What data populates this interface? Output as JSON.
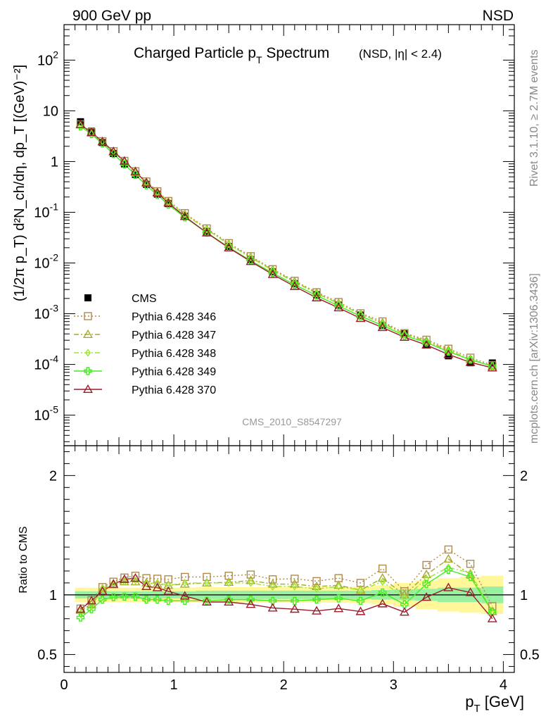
{
  "header": {
    "energy_label": "900 GeV pp",
    "process_label": "NSD"
  },
  "side_labels": {
    "rivet": "Rivet 3.1.10, ≥ 2.7M events",
    "mcplots": "mcplots.cern.ch [arXiv:1306.3436]"
  },
  "chart_data": [
    {
      "type": "line",
      "panel": "main",
      "title": "Charged Particle p_T Spectrum",
      "title_main": "Charged Particle p",
      "title_sub": "T",
      "title_rest": " Spectrum",
      "title_note": "(NSD, |η| < 2.4)",
      "watermark": "CMS_2010_S8547297",
      "ylabel": "(1/2π p_T) d²N_ch/dη, dp_T [(GeV)⁻²]",
      "yscale": "log",
      "xlim": [
        0,
        4.1
      ],
      "ylim": [
        2.5e-06,
        500
      ],
      "ytick_labels": [
        {
          "base": "10",
          "exp": "-5",
          "value": 1e-05
        },
        {
          "base": "10",
          "exp": "-4",
          "value": 0.0001
        },
        {
          "base": "10",
          "exp": "-3",
          "value": 0.001
        },
        {
          "base": "10",
          "exp": "-2",
          "value": 0.01
        },
        {
          "base": "10",
          "exp": "-1",
          "value": 0.1
        },
        {
          "base": "1",
          "exp": "",
          "value": 1
        },
        {
          "base": "10",
          "exp": "",
          "value": 10
        },
        {
          "base": "10",
          "exp": "2",
          "value": 100
        }
      ],
      "legend_position": "lower-left",
      "x": [
        0.15,
        0.25,
        0.35,
        0.45,
        0.55,
        0.65,
        0.75,
        0.85,
        0.95,
        1.1,
        1.3,
        1.5,
        1.7,
        1.9,
        2.1,
        2.3,
        2.5,
        2.7,
        2.9,
        3.1,
        3.3,
        3.5,
        3.7,
        3.9
      ],
      "series": [
        {
          "name": "CMS",
          "label": "CMS",
          "color": "#000000",
          "marker": "square-filled",
          "style": "points",
          "values": [
            6.1,
            3.95,
            2.37,
            1.44,
            0.9,
            0.555,
            0.355,
            0.228,
            0.148,
            0.0835,
            0.0418,
            0.0212,
            0.0116,
            0.00668,
            0.00392,
            0.00238,
            0.00148,
            0.000941,
            0.000578,
            0.000402,
            0.000247,
            0.000148,
            0.000108,
            0.000107
          ]
        },
        {
          "name": "Pythia 6.428 346",
          "label": "Pythia 6.428 346",
          "color": "#b08a4a",
          "marker": "square-open",
          "style": "dotted",
          "values": [
            5.4,
            3.78,
            2.52,
            1.6,
            1.03,
            0.644,
            0.405,
            0.259,
            0.167,
            0.096,
            0.048,
            0.0246,
            0.0136,
            0.00755,
            0.00445,
            0.00265,
            0.0017,
            0.00102,
            0.000705,
            0.000414,
            0.000307,
            0.000204,
            0.000136,
            9.68e-05
          ]
        },
        {
          "name": "Pythia 6.428 347",
          "label": "Pythia 6.428 347",
          "color": "#a8a82e",
          "marker": "triangle-open",
          "style": "dashdot",
          "values": [
            5.3,
            3.64,
            2.49,
            1.56,
            0.999,
            0.617,
            0.39,
            0.248,
            0.16,
            0.091,
            0.0461,
            0.0234,
            0.013,
            0.00728,
            0.00427,
            0.00254,
            0.0016,
            0.000979,
            0.000659,
            0.000402,
            0.000289,
            0.000192,
            0.000126,
            9.2e-05
          ]
        },
        {
          "name": "Pythia 6.428 348",
          "label": "Pythia 6.428 348",
          "color": "#9ee62e",
          "marker": "diamond-open",
          "style": "dashdot",
          "values": [
            5.15,
            3.56,
            2.49,
            1.58,
            1.0,
            0.622,
            0.389,
            0.251,
            0.16,
            0.092,
            0.046,
            0.0233,
            0.0128,
            0.00714,
            0.00419,
            0.0025,
            0.00158,
            0.00098,
            0.000642,
            0.000392,
            0.00028,
            0.000182,
            0.000128,
            9.15e-05
          ]
        },
        {
          "name": "Pythia 6.428 349",
          "label": "Pythia 6.428 349",
          "color": "#44ee22",
          "marker": "cross-open",
          "style": "solid",
          "values": [
            4.95,
            3.48,
            2.27,
            1.41,
            0.885,
            0.545,
            0.341,
            0.219,
            0.141,
            0.0794,
            0.0397,
            0.0204,
            0.0111,
            0.00636,
            0.00372,
            0.00229,
            0.00143,
            0.000894,
            0.00059,
            0.00037,
            0.00027,
            0.000179,
            0.000124,
            9.2e-05
          ]
        },
        {
          "name": "Pythia 6.428 370",
          "label": "Pythia 6.428 370",
          "color": "#9b1c2a",
          "marker": "triangle-open",
          "style": "solid",
          "values": [
            5.35,
            3.75,
            2.44,
            1.57,
            1.02,
            0.633,
            0.38,
            0.241,
            0.152,
            0.0827,
            0.0393,
            0.0199,
            0.0107,
            0.00595,
            0.00345,
            0.00206,
            0.00131,
            0.000809,
            0.000535,
            0.000343,
            0.000242,
            0.000157,
            0.00011,
            8.55e-05
          ]
        }
      ]
    },
    {
      "type": "line",
      "panel": "ratio",
      "ylabel": "Ratio to CMS",
      "xlabel": "p_T [GeV]",
      "xlabel_main": "p",
      "xlabel_sub": "T",
      "xlabel_rest": " [GeV]",
      "xlim": [
        0,
        4.1
      ],
      "ylim": [
        0.35,
        2.25
      ],
      "yticks": [
        0.5,
        1,
        2
      ],
      "ytick_labels": [
        "0.5",
        "1",
        "2"
      ],
      "xticks": [
        0,
        1,
        2,
        3,
        4
      ],
      "xtick_labels": [
        "0",
        "1",
        "2",
        "3",
        "4"
      ],
      "x": [
        0.15,
        0.25,
        0.35,
        0.45,
        0.55,
        0.65,
        0.75,
        0.85,
        0.95,
        1.1,
        1.3,
        1.5,
        1.7,
        1.9,
        2.1,
        2.3,
        2.5,
        2.7,
        2.9,
        3.1,
        3.3,
        3.5,
        3.7,
        3.9
      ],
      "x_edges": [
        0.1,
        0.2,
        0.3,
        0.4,
        0.5,
        0.6,
        0.7,
        0.8,
        0.9,
        1.0,
        1.2,
        1.4,
        1.6,
        1.8,
        2.0,
        2.2,
        2.4,
        2.6,
        2.8,
        3.0,
        3.2,
        3.4,
        3.6,
        3.8,
        4.0
      ],
      "band_inner": [
        0.03,
        0.03,
        0.03,
        0.03,
        0.03,
        0.03,
        0.03,
        0.03,
        0.03,
        0.03,
        0.035,
        0.035,
        0.035,
        0.035,
        0.035,
        0.035,
        0.035,
        0.035,
        0.04,
        0.045,
        0.05,
        0.06,
        0.06,
        0.07
      ],
      "band_outer": [
        0.06,
        0.06,
        0.06,
        0.06,
        0.06,
        0.06,
        0.06,
        0.06,
        0.06,
        0.06,
        0.065,
        0.065,
        0.065,
        0.065,
        0.065,
        0.065,
        0.065,
        0.07,
        0.08,
        0.1,
        0.12,
        0.14,
        0.15,
        0.16
      ],
      "series": [
        {
          "name": "Pythia 6.428 346",
          "color": "#b08a4a",
          "marker": "square-open",
          "style": "dotted",
          "values": [
            0.885,
            0.955,
            1.065,
            1.11,
            1.145,
            1.16,
            1.14,
            1.135,
            1.13,
            1.15,
            1.15,
            1.16,
            1.17,
            1.13,
            1.135,
            1.115,
            1.14,
            1.1,
            1.22,
            1.03,
            1.25,
            1.38,
            1.26,
            0.905
          ]
        },
        {
          "name": "Pythia 6.428 347",
          "color": "#a8a82e",
          "marker": "triangle-open",
          "style": "dashdot",
          "values": [
            0.87,
            0.92,
            1.05,
            1.085,
            1.11,
            1.11,
            1.1,
            1.09,
            1.08,
            1.09,
            1.1,
            1.105,
            1.12,
            1.09,
            1.09,
            1.07,
            1.08,
            1.04,
            1.14,
            1.0,
            1.17,
            1.3,
            1.17,
            0.86
          ]
        },
        {
          "name": "Pythia 6.428 348",
          "color": "#9ee62e",
          "marker": "diamond-open",
          "style": "dashdot",
          "values": [
            0.845,
            0.9,
            1.05,
            1.1,
            1.11,
            1.12,
            1.095,
            1.1,
            1.08,
            1.1,
            1.1,
            1.1,
            1.1,
            1.07,
            1.07,
            1.05,
            1.07,
            1.04,
            1.11,
            0.975,
            1.135,
            1.23,
            1.185,
            0.855
          ]
        },
        {
          "name": "Pythia 6.428 349",
          "color": "#44ee22",
          "marker": "cross-open",
          "style": "solid",
          "values": [
            0.81,
            0.88,
            0.96,
            0.98,
            0.985,
            0.985,
            0.96,
            0.96,
            0.95,
            0.95,
            0.95,
            0.96,
            0.96,
            0.95,
            0.95,
            0.96,
            0.97,
            0.95,
            1.02,
            0.92,
            1.09,
            1.21,
            1.15,
            0.86
          ]
        },
        {
          "name": "Pythia 6.428 370",
          "color": "#9b1c2a",
          "marker": "triangle-open",
          "style": "solid",
          "values": [
            0.88,
            0.95,
            1.03,
            1.09,
            1.13,
            1.14,
            1.07,
            1.06,
            1.03,
            0.99,
            0.94,
            0.94,
            0.92,
            0.89,
            0.88,
            0.865,
            0.885,
            0.86,
            0.925,
            0.855,
            0.98,
            1.06,
            1.02,
            0.8
          ]
        }
      ]
    }
  ]
}
